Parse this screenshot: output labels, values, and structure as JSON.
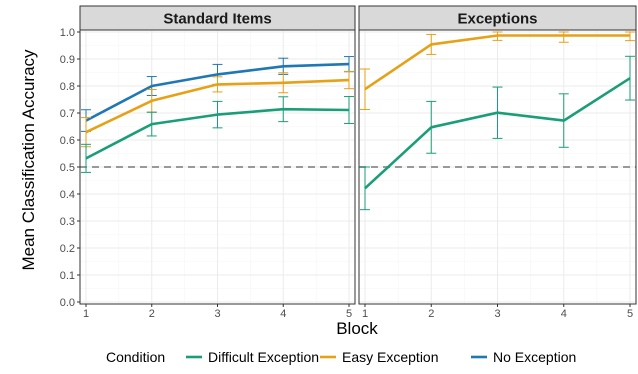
{
  "chart_data": {
    "type": "line",
    "xlabel": "Block",
    "ylabel": "Mean Classification Accuracy",
    "ylim": [
      0,
      1
    ],
    "yticks": [
      0.0,
      0.1,
      0.2,
      0.3,
      0.4,
      0.5,
      0.6,
      0.7,
      0.8,
      0.9,
      1.0
    ],
    "ytick_labels": [
      "0.0",
      "0.1",
      "0.2",
      "0.3",
      "0.4",
      "0.5",
      "0.6",
      "0.7",
      "0.8",
      "0.9",
      "1.0"
    ],
    "x": [
      1,
      2,
      3,
      4,
      5
    ],
    "xtick_labels": [
      "1",
      "2",
      "3",
      "4",
      "5"
    ],
    "reference_line": {
      "y": 0.5,
      "style": "dashed"
    },
    "grid": true,
    "legend": {
      "title": "Condition",
      "placement": "bottom",
      "entries": [
        {
          "name": "Difficult Exception",
          "color": "#1a9e77"
        },
        {
          "name": "Easy Exception",
          "color": "#e6a117"
        },
        {
          "name": "No Exception",
          "color": "#1f77b4"
        }
      ]
    },
    "panels": [
      {
        "title": "Standard Items",
        "series": [
          {
            "name": "No Exception",
            "color": "#1f77b4",
            "values": [
              0.672,
              0.8,
              0.843,
              0.873,
              0.881
            ],
            "err_low": [
              0.632,
              0.765,
              0.806,
              0.843,
              0.853
            ],
            "err_high": [
              0.712,
              0.835,
              0.88,
              0.903,
              0.909
            ]
          },
          {
            "name": "Easy Exception",
            "color": "#e6a117",
            "values": [
              0.629,
              0.745,
              0.806,
              0.812,
              0.822
            ],
            "err_low": [
              0.575,
              0.703,
              0.778,
              0.775,
              0.79
            ],
            "err_high": [
              0.683,
              0.787,
              0.834,
              0.849,
              0.854
            ]
          },
          {
            "name": "Difficult Exception",
            "color": "#1a9e77",
            "values": [
              0.532,
              0.659,
              0.694,
              0.714,
              0.711
            ],
            "err_low": [
              0.48,
              0.615,
              0.645,
              0.668,
              0.661
            ],
            "err_high": [
              0.584,
              0.703,
              0.743,
              0.76,
              0.761
            ]
          }
        ]
      },
      {
        "title": "Exceptions",
        "series": [
          {
            "name": "Easy Exception",
            "color": "#e6a117",
            "values": [
              0.788,
              0.954,
              0.987,
              0.987,
              0.987
            ],
            "err_low": [
              0.713,
              0.917,
              0.969,
              0.962,
              0.968
            ],
            "err_high": [
              0.863,
              0.991,
              1.0,
              1.0,
              1.0
            ]
          },
          {
            "name": "Difficult Exception",
            "color": "#1a9e77",
            "values": [
              0.421,
              0.647,
              0.701,
              0.672,
              0.829
            ],
            "err_low": [
              0.342,
              0.551,
              0.606,
              0.573,
              0.748
            ],
            "err_high": [
              0.5,
              0.743,
              0.796,
              0.771,
              0.91
            ]
          }
        ]
      }
    ]
  }
}
